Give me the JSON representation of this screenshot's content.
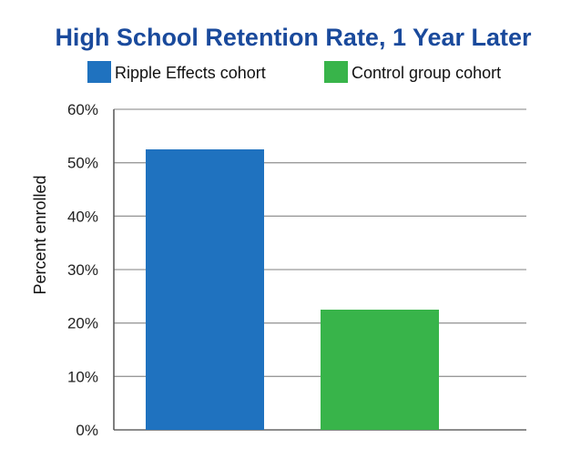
{
  "chart_data": {
    "type": "bar",
    "title": "High School Retention Rate, 1 Year Later",
    "xlabel": "",
    "ylabel": "Percent enrolled",
    "ylim": [
      0,
      60
    ],
    "yticks": [
      "0%",
      "10%",
      "20%",
      "30%",
      "40%",
      "50%",
      "60%"
    ],
    "grid": true,
    "legend_position": "top",
    "series": [
      {
        "name": "Ripple Effects cohort",
        "value": 52.5,
        "color": "#1f72bf"
      },
      {
        "name": "Control group cohort",
        "value": 22.5,
        "color": "#38b44a"
      }
    ],
    "title_color": "#1a4a9c"
  }
}
